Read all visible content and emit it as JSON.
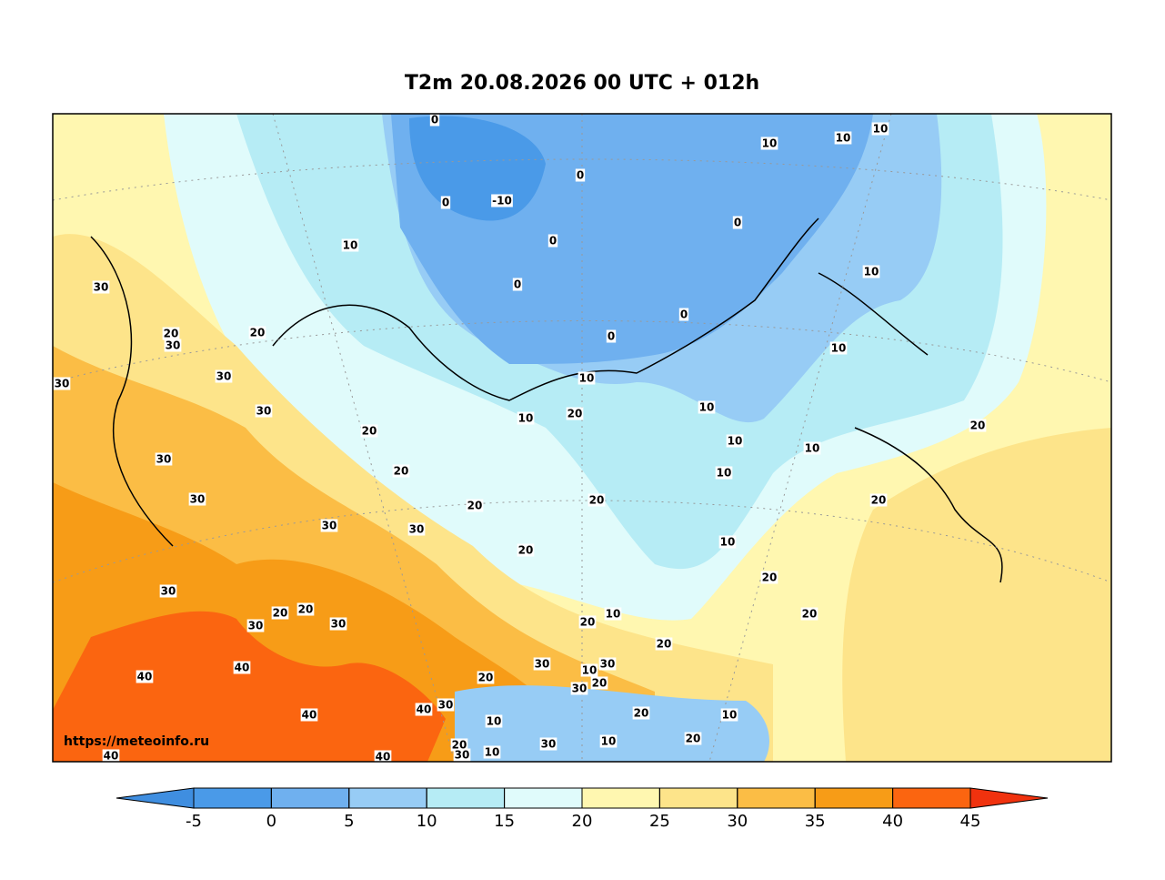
{
  "title": "T2m 20.08.2026 00 UTC + 012h",
  "watermark": "https://meteoinfo.ru",
  "contour_labels": [
    0,
    10,
    10,
    10,
    -10,
    0,
    0,
    0,
    0,
    10,
    0,
    10,
    30,
    20,
    30,
    20,
    0,
    0,
    10,
    30,
    30,
    10,
    10,
    30,
    20,
    10,
    20,
    20,
    10,
    10,
    30,
    20,
    10,
    20,
    20,
    20,
    30,
    30,
    30,
    20,
    10,
    20,
    30,
    20,
    10,
    20,
    30,
    20,
    30,
    20,
    20,
    30,
    30,
    10,
    40,
    40,
    20,
    20,
    30,
    40,
    30,
    40,
    20,
    10,
    10,
    20,
    30,
    10,
    20,
    30,
    10,
    40,
    40
  ],
  "colorbar": {
    "ticks": [
      -5,
      0,
      5,
      10,
      15,
      20,
      25,
      30,
      35,
      40,
      45
    ],
    "colors": [
      "#3f8ee0",
      "#4a9ae8",
      "#6fb0ef",
      "#97ccf5",
      "#b6ecf5",
      "#e0fbfb",
      "#fff7b0",
      "#fde48a",
      "#fbbd45",
      "#f79c17",
      "#fb6510",
      "#f0320e"
    ]
  }
}
